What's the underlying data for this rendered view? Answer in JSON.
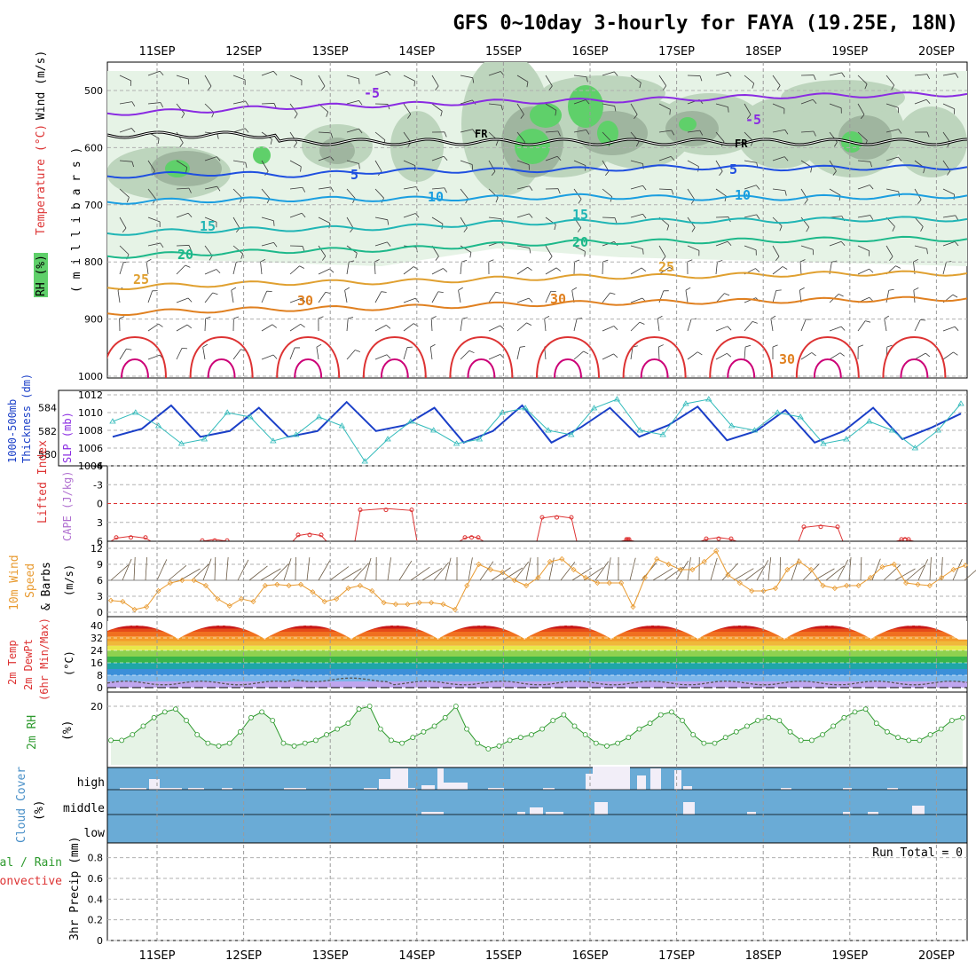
{
  "title": "GFS 0~10day 3-hourly for FAYA (19.25E, 18N)",
  "dates": [
    "11SEP",
    "12SEP",
    "13SEP",
    "14SEP",
    "15SEP",
    "16SEP",
    "17SEP",
    "18SEP",
    "19SEP",
    "20SEP"
  ],
  "colors": {
    "rh_light": "#e6f3e6",
    "rh_mid": "#bdd5bd",
    "rh_dark": "#9fb59f",
    "rh_green": "#5fd06a",
    "wind_barb": "#3a3a3a",
    "thickness": "#1a3fc8",
    "slp": "#33bbbb",
    "lifted_index": "#dd3333",
    "wind10m": "#e89a30",
    "rh2m": "#2e9a2e",
    "cloud_bg": "#6aabd6",
    "cloud_fill": "#f2eef8",
    "precip_rain": "#2e9a2e",
    "precip_conv": "#dd3333"
  },
  "panels": {
    "profile": {
      "label_rh": "RH (%)",
      "label_temp": "Temperature (°C)",
      "label_wind": "Wind (m/s)",
      "label_mb": "( m i l l i b a r s )",
      "yticks": [
        "500",
        "600",
        "700",
        "800",
        "900",
        "1000"
      ],
      "freezing_label": "FR",
      "isotherms": [
        {
          "label": "-5",
          "color": "#8a2be2",
          "mb": [
            540,
            535,
            528,
            525,
            520,
            518,
            515,
            510,
            508,
            506
          ]
        },
        {
          "label": "5",
          "color": "#1f4fe0",
          "mb": [
            650,
            645,
            648,
            640,
            640,
            638,
            634,
            636,
            635,
            634
          ]
        },
        {
          "label": "10",
          "color": "#1a9ee0",
          "mb": [
            695,
            692,
            690,
            690,
            688,
            685,
            688,
            688,
            686,
            684
          ]
        },
        {
          "label": "15",
          "color": "#20b5b5",
          "mb": [
            750,
            745,
            742,
            740,
            732,
            730,
            728,
            728,
            725,
            725
          ]
        },
        {
          "label": "20",
          "color": "#1db88a",
          "mb": [
            790,
            785,
            780,
            778,
            770,
            765,
            764,
            762,
            760,
            760
          ]
        },
        {
          "label": "25",
          "color": "#e0a030",
          "mb": [
            845,
            840,
            836,
            835,
            830,
            826,
            825,
            822,
            820,
            820
          ]
        },
        {
          "label": "30",
          "color": "#e08020",
          "mb": [
            890,
            885,
            882,
            880,
            875,
            872,
            870,
            868,
            866,
            864
          ]
        }
      ],
      "rh_contour_labels": [
        "30",
        "30",
        "30",
        "30"
      ]
    },
    "thickness": {
      "label_a": "1000-500mb",
      "label_b": "Thickness (dm)",
      "label_slp": "SLP (mb)",
      "yticks_left": [
        "584",
        "582",
        "580"
      ],
      "yticks_right": [
        "1012",
        "1010",
        "1008",
        "1006",
        "1004"
      ]
    },
    "li": {
      "label_a": "Lifted Index",
      "label_b": "CAPE (J/kg)",
      "yticks": [
        "-6",
        "-3",
        "0",
        "3",
        "6"
      ]
    },
    "wind10m": {
      "label_a": "10m Wind",
      "label_b": "Speed",
      "label_c": "& Barbs",
      "label_d": "(m/s)",
      "yticks": [
        "12",
        "9",
        "6",
        "3",
        "0"
      ]
    },
    "temp2m": {
      "label_a": "2m Temp",
      "label_b": "2m DewPt",
      "label_c": "(6hr Min/Max)",
      "label_d": "(°C)",
      "yticks": [
        "40",
        "32",
        "24",
        "16",
        "8",
        "0"
      ]
    },
    "rh2m": {
      "label_a": "2m RH",
      "label_b": "(%)",
      "yticks": [
        "20"
      ]
    },
    "cloud": {
      "label_a": "Cloud Cover",
      "label_b": "(%)",
      "levels": [
        "high",
        "middle",
        "low"
      ]
    },
    "precip": {
      "label_a": "3hr Precip (mm)",
      "label_total": "Total / Rain",
      "label_conv": "Convective",
      "run_total": "Run Total = 0",
      "yticks": [
        "0.8",
        "0.6",
        "0.4",
        "0.2",
        "0"
      ]
    }
  },
  "chart_data": [
    {
      "type": "line",
      "title": "1000-500mb Thickness (dm)",
      "x": [
        "10SEP21",
        "11SEP00",
        "11SEP09",
        "11SEP15",
        "12SEP00",
        "12SEP09",
        "12SEP15",
        "13SEP00",
        "13SEP09",
        "13SEP15",
        "14SEP00",
        "14SEP09",
        "14SEP15",
        "15SEP00",
        "15SEP09",
        "15SEP15",
        "16SEP00",
        "16SEP09",
        "16SEP15",
        "17SEP00",
        "17SEP09",
        "17SEP15",
        "18SEP00",
        "18SEP09",
        "18SEP15",
        "19SEP00",
        "19SEP09",
        "19SEP15",
        "20SEP00",
        "20SEP09"
      ],
      "series": [
        {
          "values": [
            581.5,
            582.2,
            584.2,
            581.5,
            582.0,
            584.0,
            581.5,
            582.0,
            584.5,
            582.0,
            582.5,
            584.0,
            581.0,
            582.0,
            584.2,
            581.0,
            582.3,
            584.0,
            581.5,
            582.5,
            584.1,
            581.2,
            582.0,
            583.8,
            581.0,
            582.0,
            584.0,
            581.3,
            582.3,
            583.5
          ]
        }
      ],
      "ylim": [
        579,
        585.5
      ]
    },
    {
      "type": "line",
      "title": "SLP (mb)",
      "x": [
        "10SEP21",
        "11SEP03",
        "11SEP09",
        "11SEP15",
        "11SEP21",
        "12SEP03",
        "12SEP09",
        "12SEP15",
        "12SEP21",
        "13SEP03",
        "13SEP09",
        "13SEP15",
        "13SEP21",
        "14SEP03",
        "14SEP09",
        "14SEP15",
        "14SEP21",
        "15SEP03",
        "15SEP09",
        "15SEP15",
        "15SEP21",
        "16SEP03",
        "16SEP09",
        "16SEP15",
        "16SEP21",
        "17SEP03",
        "17SEP09",
        "17SEP15",
        "17SEP21",
        "18SEP03",
        "18SEP09",
        "18SEP15",
        "18SEP21",
        "19SEP03",
        "19SEP09",
        "19SEP15",
        "19SEP21",
        "20SEP03"
      ],
      "series": [
        {
          "values": [
            1009,
            1010,
            1008.5,
            1006.5,
            1007,
            1010,
            1009.5,
            1006.8,
            1007.5,
            1009.5,
            1008.5,
            1004.5,
            1007,
            1009,
            1008,
            1006.5,
            1007,
            1010,
            1010.5,
            1008,
            1007.5,
            1010.5,
            1011.5,
            1008,
            1007.5,
            1011,
            1011.5,
            1008.5,
            1008,
            1010,
            1009.5,
            1006.5,
            1007,
            1009,
            1008,
            1006,
            1008,
            1011
          ]
        }
      ],
      "ylim": [
        1004,
        1012
      ]
    },
    {
      "type": "line",
      "title": "2m RH (%)",
      "series": [
        {
          "values": [
            8,
            8,
            10,
            13,
            16,
            18,
            19,
            15,
            10,
            7,
            6,
            7,
            11,
            16,
            18,
            15,
            7,
            6,
            7,
            8,
            10,
            12,
            14,
            19,
            20,
            12,
            8,
            7,
            9,
            11,
            13,
            16,
            20,
            12,
            7,
            5,
            6,
            8,
            9,
            10,
            12,
            15,
            17,
            13,
            10,
            7,
            6,
            7,
            9,
            12,
            14,
            17,
            18,
            15,
            10,
            7,
            7,
            9,
            11,
            13,
            15,
            16,
            15,
            11,
            8,
            8,
            10,
            13,
            16,
            18,
            19,
            14,
            11,
            9,
            8,
            8,
            10,
            12,
            15,
            16
          ]
        }
      ],
      "ylim": [
        0,
        25
      ]
    },
    {
      "type": "line",
      "title": "10m Wind Speed (m/s)",
      "series": [
        {
          "values": [
            2.2,
            2.0,
            0.5,
            1.0,
            4.0,
            5.5,
            6.0,
            6.0,
            5.0,
            2.5,
            1.2,
            2.5,
            2.0,
            5.0,
            5.2,
            5.0,
            5.2,
            3.8,
            2.0,
            2.5,
            4.5,
            5.0,
            4.0,
            1.8,
            1.5,
            1.5,
            1.8,
            1.8,
            1.5,
            0.5,
            5.0,
            9.0,
            8.0,
            7.5,
            6.0,
            5.0,
            6.5,
            9.5,
            10.0,
            8.0,
            6.5,
            5.5,
            5.5,
            5.5,
            1.0,
            6.5,
            10.0,
            9.0,
            8.0,
            8.0,
            9.5,
            11.5,
            7.0,
            5.5,
            4.0,
            4.0,
            4.5,
            8.0,
            9.5,
            8.0,
            5.0,
            4.5,
            5.0,
            5.0,
            6.5,
            8.5,
            9.0,
            5.5,
            5.2,
            5.0,
            6.5,
            8.0,
            8.8
          ]
        }
      ],
      "ylim": [
        0,
        12
      ]
    }
  ]
}
